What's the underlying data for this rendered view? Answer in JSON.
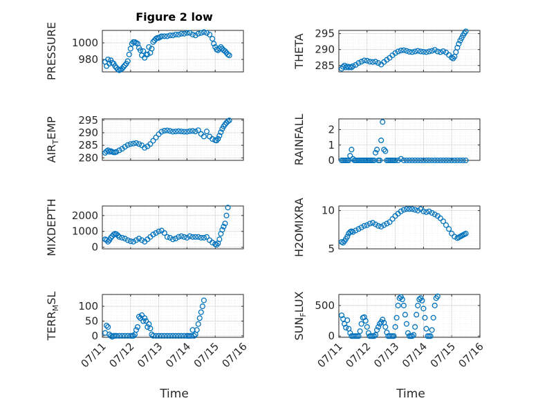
{
  "colors": {
    "marker": "#0072bd",
    "axis": "#262626",
    "grid": "#d6d6d6",
    "background": "#ffffff"
  },
  "figure_title": "Figure 2 low",
  "time_label": "Time",
  "time_ticks": [
    "07/11",
    "07/12",
    "07/13",
    "07/14",
    "07/15",
    "07/16"
  ],
  "chart_data": [
    {
      "type": "scatter",
      "ylabel": "PRESSURE",
      "ylim": [
        965,
        1015
      ],
      "yticks": [
        980,
        1000
      ],
      "xlim": [
        0,
        5
      ],
      "grid": true,
      "x": [
        0.1,
        0.15,
        0.2,
        0.25,
        0.3,
        0.35,
        0.4,
        0.45,
        0.5,
        0.55,
        0.6,
        0.65,
        0.7,
        0.75,
        0.8,
        0.85,
        0.9,
        0.95,
        1.0,
        1.05,
        1.1,
        1.15,
        1.2,
        1.25,
        1.3,
        1.35,
        1.4,
        1.45,
        1.5,
        1.55,
        1.6,
        1.65,
        1.7,
        1.75,
        1.8,
        1.85,
        1.9,
        1.95,
        2.0,
        2.05,
        2.1,
        2.2,
        2.3,
        2.4,
        2.5,
        2.6,
        2.7,
        2.8,
        2.9,
        3.0,
        3.1,
        3.2,
        3.3,
        3.4,
        3.5,
        3.6,
        3.7,
        3.8,
        3.9,
        3.95,
        4.0,
        4.05,
        4.1,
        4.15,
        4.2,
        4.25,
        4.3,
        4.35,
        4.4,
        4.45,
        4.5
      ],
      "y": [
        977,
        972,
        980,
        975,
        979,
        976,
        975,
        972,
        970,
        968,
        967,
        968,
        969,
        971,
        973,
        975,
        978,
        986,
        993,
        999,
        1001,
        1001,
        1000,
        999,
        994,
        991,
        985,
        990,
        982,
        986,
        986,
        995,
        988,
        993,
        1001,
        1003,
        1005,
        1006,
        1006,
        1007,
        1008,
        1008,
        1008,
        1009,
        1009,
        1010,
        1010,
        1011,
        1011,
        1012,
        1012,
        1010,
        1009,
        1011,
        1012,
        1013,
        1012,
        1010,
        1005,
        999,
        995,
        992,
        991,
        993,
        995,
        993,
        991,
        990,
        988,
        986,
        985
      ]
    },
    {
      "type": "scatter",
      "ylabel": "THETA",
      "ylim": [
        283,
        296
      ],
      "yticks": [
        285,
        290,
        295
      ],
      "xlim": [
        0,
        5
      ],
      "grid": true,
      "x": [
        0.1,
        0.15,
        0.2,
        0.25,
        0.3,
        0.35,
        0.4,
        0.45,
        0.5,
        0.6,
        0.7,
        0.8,
        0.9,
        1.0,
        1.1,
        1.2,
        1.3,
        1.4,
        1.5,
        1.6,
        1.7,
        1.8,
        1.9,
        2.0,
        2.1,
        2.2,
        2.3,
        2.4,
        2.5,
        2.6,
        2.7,
        2.8,
        2.9,
        3.0,
        3.1,
        3.2,
        3.3,
        3.4,
        3.5,
        3.6,
        3.7,
        3.8,
        3.9,
        4.0,
        4.05,
        4.1,
        4.15,
        4.2,
        4.25,
        4.3,
        4.35,
        4.4,
        4.45,
        4.5
      ],
      "y": [
        284,
        284.6,
        285,
        284.4,
        284.7,
        284.4,
        284.6,
        284.4,
        284.8,
        285.2,
        285.8,
        286.2,
        286.6,
        286.5,
        286.2,
        286.1,
        286.2,
        285.8,
        285.3,
        286.1,
        286.8,
        287.4,
        288.2,
        288.9,
        289.4,
        289.7,
        289.8,
        289.6,
        289.3,
        289.2,
        289.4,
        289.6,
        289.4,
        289.3,
        289.2,
        289.4,
        289.6,
        289.9,
        289.4,
        289.2,
        289.5,
        289.1,
        288.3,
        287.5,
        287.2,
        287.8,
        289.2,
        290.6,
        291.8,
        292.8,
        293.6,
        294.4,
        295.1,
        295.7
      ]
    },
    {
      "type": "scatter",
      "ylabel": "AIR_TEMP",
      "ylim": [
        279,
        295.5
      ],
      "yticks": [
        280,
        285,
        290,
        295
      ],
      "xlim": [
        0,
        5
      ],
      "grid": true,
      "x": [
        0.1,
        0.15,
        0.2,
        0.25,
        0.3,
        0.35,
        0.4,
        0.45,
        0.5,
        0.6,
        0.7,
        0.8,
        0.9,
        1.0,
        1.1,
        1.2,
        1.3,
        1.4,
        1.5,
        1.6,
        1.7,
        1.8,
        1.9,
        2.0,
        2.1,
        2.2,
        2.3,
        2.4,
        2.5,
        2.6,
        2.7,
        2.8,
        2.9,
        3.0,
        3.1,
        3.2,
        3.3,
        3.4,
        3.5,
        3.6,
        3.7,
        3.8,
        3.9,
        4.0,
        4.05,
        4.1,
        4.15,
        4.2,
        4.25,
        4.3,
        4.35,
        4.4,
        4.45,
        4.5
      ],
      "y": [
        282,
        282.6,
        283,
        282.4,
        282.7,
        282.4,
        282.2,
        282.2,
        282.4,
        283,
        283.6,
        284.4,
        285.1,
        285.5,
        285.7,
        285.9,
        285.5,
        285,
        284,
        284.6,
        285.5,
        286.8,
        288.1,
        289.4,
        290.4,
        290.8,
        290.9,
        290.7,
        290.4,
        290.5,
        290.6,
        290.5,
        290.4,
        290.4,
        290.6,
        290.7,
        290.5,
        291,
        289.5,
        288.5,
        290.5,
        288.5,
        287.5,
        287,
        286.9,
        287.6,
        288.8,
        290.2,
        291.5,
        292.5,
        293.3,
        294,
        294.5,
        294.9
      ]
    },
    {
      "type": "scatter",
      "ylabel": "RAINFALL",
      "ylim": [
        0,
        2.7
      ],
      "yticks": [
        0,
        1,
        2
      ],
      "xlim": [
        0,
        5
      ],
      "grid": true,
      "x": [
        0.1,
        0.15,
        0.2,
        0.25,
        0.3,
        0.35,
        0.4,
        0.45,
        0.5,
        0.55,
        0.6,
        0.65,
        0.7,
        0.75,
        0.8,
        0.85,
        0.9,
        0.95,
        1.0,
        1.05,
        1.1,
        1.15,
        1.2,
        1.25,
        1.3,
        1.35,
        1.4,
        1.45,
        1.5,
        1.55,
        1.6,
        1.65,
        1.7,
        1.75,
        1.8,
        1.85,
        1.9,
        1.95,
        2.0,
        2.1,
        2.2,
        2.3,
        2.4,
        2.5,
        2.6,
        2.7,
        2.8,
        2.9,
        3.0,
        3.1,
        3.2,
        3.3,
        3.4,
        3.5,
        3.6,
        3.7,
        3.8,
        3.9,
        4.0,
        4.1,
        4.2,
        4.3,
        4.4,
        4.5
      ],
      "y": [
        0,
        0,
        0,
        0,
        0,
        0,
        0.3,
        0.7,
        0.1,
        0,
        0,
        0,
        0,
        0,
        0,
        0,
        0,
        0,
        0,
        0,
        0,
        0,
        0,
        0,
        0.5,
        0.7,
        0,
        0,
        1.3,
        2.5,
        0.7,
        0.6,
        0,
        0,
        0,
        0,
        0,
        0,
        0,
        0,
        0.1,
        0,
        0,
        0,
        0,
        0,
        0,
        0,
        0,
        0,
        0,
        0,
        0,
        0,
        0,
        0,
        0,
        0,
        0,
        0,
        0,
        0,
        0,
        0
      ]
    },
    {
      "type": "scatter",
      "ylabel": "MIXDEPTH",
      "ylim": [
        -100,
        2600
      ],
      "yticks": [
        0,
        1000,
        2000
      ],
      "xlim": [
        0,
        5
      ],
      "grid": true,
      "x": [
        0.1,
        0.15,
        0.2,
        0.25,
        0.3,
        0.35,
        0.4,
        0.45,
        0.5,
        0.55,
        0.6,
        0.7,
        0.8,
        0.9,
        1.0,
        1.1,
        1.2,
        1.3,
        1.4,
        1.5,
        1.6,
        1.7,
        1.8,
        1.9,
        2.0,
        2.1,
        2.2,
        2.3,
        2.4,
        2.5,
        2.6,
        2.7,
        2.8,
        2.9,
        3.0,
        3.1,
        3.2,
        3.3,
        3.4,
        3.5,
        3.6,
        3.7,
        3.8,
        3.9,
        4.0,
        4.05,
        4.1,
        4.15,
        4.2,
        4.25,
        4.3,
        4.35,
        4.4,
        4.45
      ],
      "y": [
        500,
        450,
        350,
        450,
        600,
        700,
        800,
        850,
        820,
        750,
        650,
        600,
        550,
        450,
        380,
        350,
        450,
        550,
        450,
        350,
        500,
        650,
        800,
        900,
        1000,
        1050,
        900,
        650,
        600,
        500,
        550,
        650,
        700,
        650,
        600,
        700,
        650,
        650,
        650,
        600,
        600,
        650,
        450,
        300,
        200,
        150,
        250,
        500,
        850,
        1100,
        1300,
        1500,
        2000,
        2500
      ]
    },
    {
      "type": "scatter",
      "ylabel": "H2OMIXRA",
      "ylim": [
        5,
        10.6
      ],
      "yticks": [
        5,
        10
      ],
      "xlim": [
        0,
        5
      ],
      "grid": true,
      "x": [
        0.1,
        0.15,
        0.2,
        0.25,
        0.3,
        0.35,
        0.4,
        0.45,
        0.5,
        0.6,
        0.7,
        0.8,
        0.9,
        1.0,
        1.1,
        1.2,
        1.3,
        1.4,
        1.5,
        1.6,
        1.7,
        1.8,
        1.9,
        2.0,
        2.1,
        2.2,
        2.3,
        2.4,
        2.5,
        2.6,
        2.7,
        2.8,
        2.9,
        3.0,
        3.1,
        3.2,
        3.3,
        3.4,
        3.5,
        3.6,
        3.7,
        3.8,
        3.9,
        4.0,
        4.1,
        4.2,
        4.25,
        4.3,
        4.35,
        4.4,
        4.45,
        4.5
      ],
      "y": [
        5.9,
        5.8,
        6.0,
        6.3,
        6.6,
        7.0,
        7.2,
        7.3,
        7.2,
        7.4,
        7.6,
        7.8,
        8.0,
        8.1,
        8.3,
        8.4,
        8.2,
        8.0,
        7.9,
        8.1,
        8.3,
        8.5,
        8.9,
        9.3,
        9.6,
        9.9,
        10.1,
        10.2,
        10.2,
        10.2,
        10.1,
        10.0,
        10.2,
        9.9,
        9.8,
        9.9,
        9.7,
        9.5,
        9.3,
        9.0,
        8.6,
        8.1,
        7.6,
        7.0,
        6.6,
        6.4,
        6.5,
        6.6,
        6.7,
        6.8,
        6.9,
        7.0
      ]
    },
    {
      "type": "scatter",
      "ylabel": "TERR_MSL",
      "ylim": [
        -5,
        140
      ],
      "yticks": [
        0,
        50,
        100
      ],
      "xlim": [
        0,
        5
      ],
      "grid": true,
      "x": [
        0.1,
        0.15,
        0.2,
        0.25,
        0.3,
        0.35,
        0.4,
        0.45,
        0.5,
        0.6,
        0.7,
        0.8,
        0.9,
        1.0,
        1.05,
        1.1,
        1.15,
        1.2,
        1.25,
        1.3,
        1.35,
        1.4,
        1.45,
        1.5,
        1.55,
        1.6,
        1.65,
        1.7,
        1.75,
        1.8,
        1.9,
        2.0,
        2.1,
        2.2,
        2.3,
        2.4,
        2.5,
        2.6,
        2.7,
        2.8,
        2.9,
        3.0,
        3.05,
        3.1,
        3.15,
        3.2,
        3.25,
        3.3,
        3.35,
        3.4,
        3.45,
        3.5,
        3.55,
        3.6
      ],
      "y": [
        10,
        35,
        30,
        5,
        0,
        -3,
        0,
        0,
        0,
        0,
        0,
        0,
        0,
        0,
        0,
        0,
        5,
        20,
        30,
        65,
        60,
        70,
        50,
        60,
        50,
        30,
        40,
        25,
        5,
        0,
        0,
        0,
        0,
        0,
        0,
        0,
        0,
        0,
        0,
        0,
        0,
        0,
        0,
        0,
        0,
        20,
        0,
        5,
        20,
        40,
        60,
        80,
        100,
        120
      ]
    },
    {
      "type": "scatter",
      "ylabel": "SUN_FLUX",
      "ylim": [
        -20,
        680
      ],
      "yticks": [
        0,
        500
      ],
      "xlim": [
        0,
        5
      ],
      "grid": true,
      "x": [
        0.1,
        0.15,
        0.2,
        0.25,
        0.3,
        0.35,
        0.4,
        0.45,
        0.5,
        0.55,
        0.6,
        0.65,
        0.7,
        0.75,
        0.8,
        0.85,
        0.9,
        0.95,
        1.0,
        1.05,
        1.1,
        1.15,
        1.2,
        1.25,
        1.3,
        1.35,
        1.4,
        1.45,
        1.5,
        1.55,
        1.6,
        1.65,
        1.7,
        1.75,
        1.8,
        1.85,
        1.9,
        1.95,
        2.0,
        2.05,
        2.1,
        2.15,
        2.2,
        2.25,
        2.3,
        2.35,
        2.4,
        2.45,
        2.5,
        2.55,
        2.6,
        2.65,
        2.7,
        2.75,
        2.8,
        2.85,
        2.9,
        2.95,
        3.0,
        3.05,
        3.1,
        3.15,
        3.2,
        3.25,
        3.3,
        3.35,
        3.4,
        3.45,
        3.5
      ],
      "y": [
        340,
        280,
        200,
        140,
        260,
        120,
        50,
        0,
        0,
        0,
        0,
        0,
        0,
        80,
        200,
        300,
        310,
        250,
        150,
        50,
        0,
        0,
        0,
        0,
        20,
        100,
        150,
        200,
        230,
        270,
        220,
        150,
        60,
        0,
        0,
        0,
        0,
        0,
        150,
        300,
        500,
        620,
        640,
        600,
        500,
        350,
        200,
        50,
        0,
        0,
        0,
        20,
        150,
        350,
        500,
        600,
        620,
        580,
        450,
        300,
        120,
        0,
        0,
        0,
        100,
        300,
        500,
        620,
        650
      ]
    }
  ]
}
